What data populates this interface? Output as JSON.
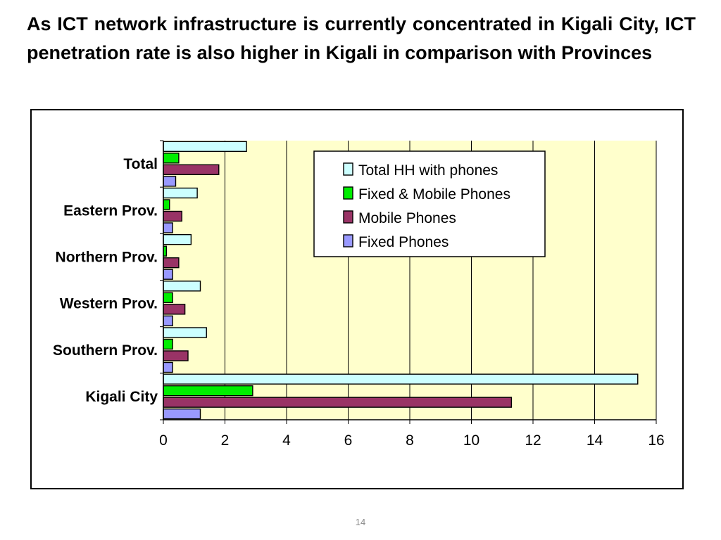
{
  "slide": {
    "title": "As ICT network infrastructure is currently concentrated in Kigali City, ICT penetration rate is also higher in Kigali in comparison with Provinces",
    "page_number": "14"
  },
  "chart_data": {
    "type": "bar",
    "orientation": "horizontal",
    "categories": [
      "Kigali City",
      "Southern Prov.",
      "Western Prov.",
      "Northern Prov.",
      "Eastern Prov.",
      "Total"
    ],
    "series": [
      {
        "name": "Total HH with phones",
        "color": "#ccffff",
        "values": [
          15.4,
          1.4,
          1.2,
          0.9,
          1.1,
          2.7
        ]
      },
      {
        "name": "Fixed & Mobile Phones",
        "color": "#00ee00",
        "values": [
          2.9,
          0.3,
          0.3,
          0.1,
          0.2,
          0.5
        ]
      },
      {
        "name": "Mobile Phones",
        "color": "#993366",
        "values": [
          11.3,
          0.8,
          0.7,
          0.5,
          0.6,
          1.8
        ]
      },
      {
        "name": "Fixed Phones",
        "color": "#9999ff",
        "values": [
          1.2,
          0.3,
          0.3,
          0.3,
          0.3,
          0.4
        ]
      }
    ],
    "xlim": [
      0,
      16
    ],
    "xticks": [
      0,
      2,
      4,
      6,
      8,
      10,
      12,
      14,
      16
    ],
    "xtick_labels": [
      "0",
      "2",
      "4",
      "6",
      "8",
      "10",
      "12",
      "14",
      "16"
    ],
    "grid": "vertical major gridlines",
    "plot_background": "#ffffcc",
    "legend_position": "top-right"
  }
}
